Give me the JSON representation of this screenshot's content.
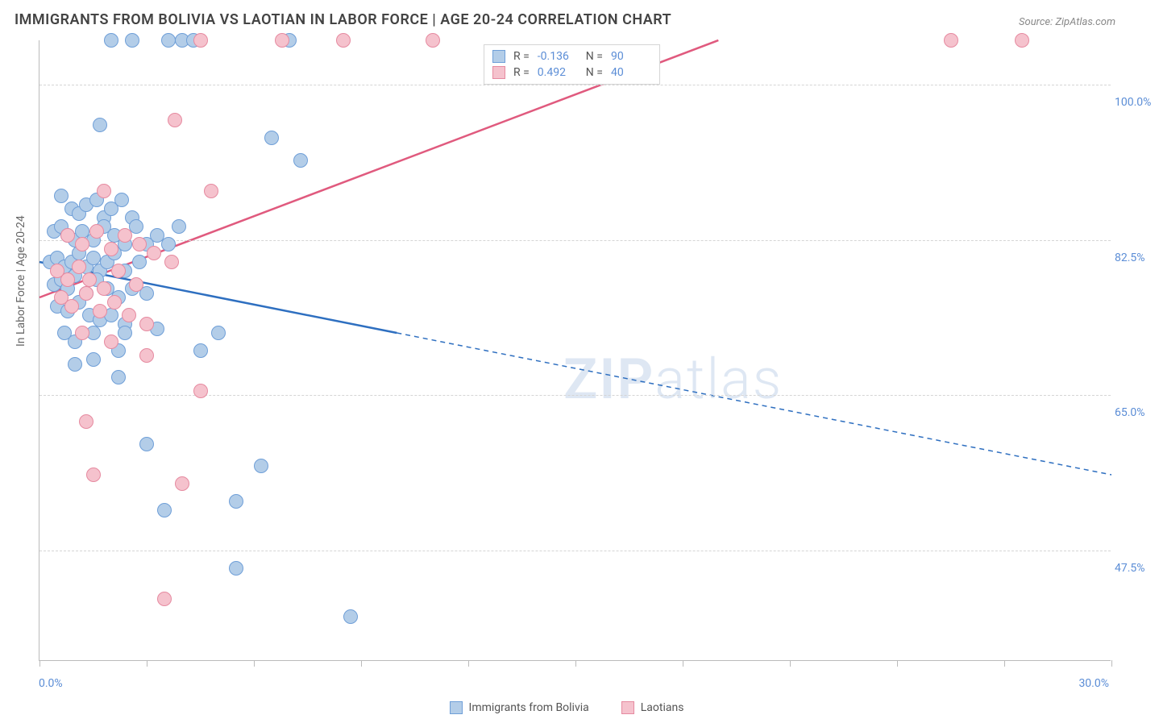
{
  "title": "IMMIGRANTS FROM BOLIVIA VS LAOTIAN IN LABOR FORCE | AGE 20-24 CORRELATION CHART",
  "source_label": "Source:",
  "source_link": "ZipAtlas.com",
  "ylabel": "In Labor Force | Age 20-24",
  "watermark_a": "ZIP",
  "watermark_b": "atlas",
  "chart": {
    "type": "scatter",
    "xlim": [
      0,
      30
    ],
    "ylim": [
      35,
      105
    ],
    "xticks": [
      0,
      3,
      6,
      9,
      12,
      15,
      18,
      21,
      24,
      27,
      30
    ],
    "x_label_min": "0.0%",
    "x_label_max": "30.0%",
    "yticks": [
      {
        "v": 47.5,
        "label": "47.5%"
      },
      {
        "v": 65.0,
        "label": "65.0%"
      },
      {
        "v": 82.5,
        "label": "82.5%"
      },
      {
        "v": 100.0,
        "label": "100.0%"
      }
    ],
    "grid_color": "#d5d5d5",
    "axis_color": "#bbbbbb",
    "background_color": "#ffffff",
    "marker_radius": 9,
    "series": [
      {
        "name": "Immigrants from Bolivia",
        "fill": "#b3cde8",
        "stroke": "#6f9fd8",
        "line_color": "#2e6fc0",
        "R": "-0.136",
        "N": "90",
        "regression": {
          "x1": 0,
          "y1": 80.0,
          "x2_solid": 10,
          "y2_solid": 72.0,
          "x2": 30,
          "y2": 56.0
        },
        "points": [
          [
            2.0,
            105
          ],
          [
            2.6,
            105
          ],
          [
            3.6,
            105
          ],
          [
            4.0,
            105
          ],
          [
            4.3,
            105
          ],
          [
            7.0,
            105
          ],
          [
            1.7,
            95.5
          ],
          [
            6.5,
            94.0
          ],
          [
            7.3,
            91.5
          ],
          [
            0.6,
            87.5
          ],
          [
            0.9,
            86.0
          ],
          [
            1.1,
            85.5
          ],
          [
            1.3,
            86.5
          ],
          [
            1.6,
            87.0
          ],
          [
            1.8,
            85.0
          ],
          [
            2.0,
            86.0
          ],
          [
            2.3,
            87.0
          ],
          [
            2.6,
            85.0
          ],
          [
            0.4,
            83.5
          ],
          [
            0.6,
            84.0
          ],
          [
            0.8,
            83.0
          ],
          [
            1.0,
            82.5
          ],
          [
            1.2,
            83.5
          ],
          [
            1.5,
            82.5
          ],
          [
            1.8,
            84.0
          ],
          [
            2.1,
            83.0
          ],
          [
            2.4,
            82.0
          ],
          [
            2.7,
            84.0
          ],
          [
            3.0,
            82.0
          ],
          [
            3.3,
            83.0
          ],
          [
            3.6,
            82.0
          ],
          [
            3.9,
            84.0
          ],
          [
            0.3,
            80.0
          ],
          [
            0.5,
            80.5
          ],
          [
            0.7,
            79.5
          ],
          [
            0.9,
            80.0
          ],
          [
            1.1,
            81.0
          ],
          [
            1.3,
            79.5
          ],
          [
            1.5,
            80.5
          ],
          [
            1.7,
            79.0
          ],
          [
            1.9,
            80.0
          ],
          [
            2.1,
            81.0
          ],
          [
            2.4,
            79.0
          ],
          [
            2.8,
            80.0
          ],
          [
            0.4,
            77.5
          ],
          [
            0.6,
            78.0
          ],
          [
            0.8,
            77.0
          ],
          [
            1.0,
            78.5
          ],
          [
            1.3,
            76.5
          ],
          [
            1.6,
            78.0
          ],
          [
            1.9,
            77.0
          ],
          [
            2.2,
            76.0
          ],
          [
            2.6,
            77.0
          ],
          [
            3.0,
            76.5
          ],
          [
            0.5,
            75.0
          ],
          [
            0.8,
            74.5
          ],
          [
            1.1,
            75.5
          ],
          [
            1.4,
            74.0
          ],
          [
            1.7,
            73.5
          ],
          [
            2.0,
            74.0
          ],
          [
            2.4,
            73.0
          ],
          [
            0.7,
            72.0
          ],
          [
            1.0,
            71.0
          ],
          [
            1.5,
            72.0
          ],
          [
            2.2,
            70.0
          ],
          [
            3.3,
            72.5
          ],
          [
            4.5,
            70.0
          ],
          [
            5.0,
            72.0
          ],
          [
            1.0,
            68.5
          ],
          [
            1.5,
            69.0
          ],
          [
            2.2,
            67.0
          ],
          [
            2.4,
            72.0
          ],
          [
            3.0,
            59.5
          ],
          [
            6.2,
            57.0
          ],
          [
            5.5,
            53.0
          ],
          [
            3.5,
            52.0
          ],
          [
            5.5,
            45.5
          ],
          [
            8.7,
            40.0
          ]
        ]
      },
      {
        "name": "Laotians",
        "fill": "#f5c2cd",
        "stroke": "#e68aa0",
        "line_color": "#e05a7e",
        "R": "0.492",
        "N": "40",
        "regression": {
          "x1": 0,
          "y1": 76.0,
          "x2_solid": 19,
          "y2_solid": 105.0,
          "x2": 19,
          "y2": 105.0
        },
        "points": [
          [
            4.5,
            105
          ],
          [
            6.8,
            105
          ],
          [
            8.5,
            105
          ],
          [
            11.0,
            105
          ],
          [
            25.5,
            105
          ],
          [
            27.5,
            105
          ],
          [
            3.8,
            96.0
          ],
          [
            1.8,
            88.0
          ],
          [
            4.8,
            88.0
          ],
          [
            0.8,
            83.0
          ],
          [
            1.2,
            82.0
          ],
          [
            1.6,
            83.5
          ],
          [
            2.0,
            81.5
          ],
          [
            2.4,
            83.0
          ],
          [
            2.8,
            82.0
          ],
          [
            3.2,
            81.0
          ],
          [
            3.7,
            80.0
          ],
          [
            0.5,
            79.0
          ],
          [
            0.8,
            78.0
          ],
          [
            1.1,
            79.5
          ],
          [
            1.4,
            78.0
          ],
          [
            1.8,
            77.0
          ],
          [
            2.2,
            79.0
          ],
          [
            2.7,
            77.5
          ],
          [
            0.6,
            76.0
          ],
          [
            0.9,
            75.0
          ],
          [
            1.3,
            76.5
          ],
          [
            1.7,
            74.5
          ],
          [
            2.1,
            75.5
          ],
          [
            2.5,
            74.0
          ],
          [
            3.0,
            73.0
          ],
          [
            1.2,
            72.0
          ],
          [
            2.0,
            71.0
          ],
          [
            3.0,
            69.5
          ],
          [
            4.5,
            65.5
          ],
          [
            1.3,
            62.0
          ],
          [
            1.5,
            56.0
          ],
          [
            4.0,
            55.0
          ],
          [
            3.5,
            42.0
          ]
        ]
      }
    ]
  },
  "legend_stats_labels": {
    "R": "R =",
    "N": "N ="
  }
}
